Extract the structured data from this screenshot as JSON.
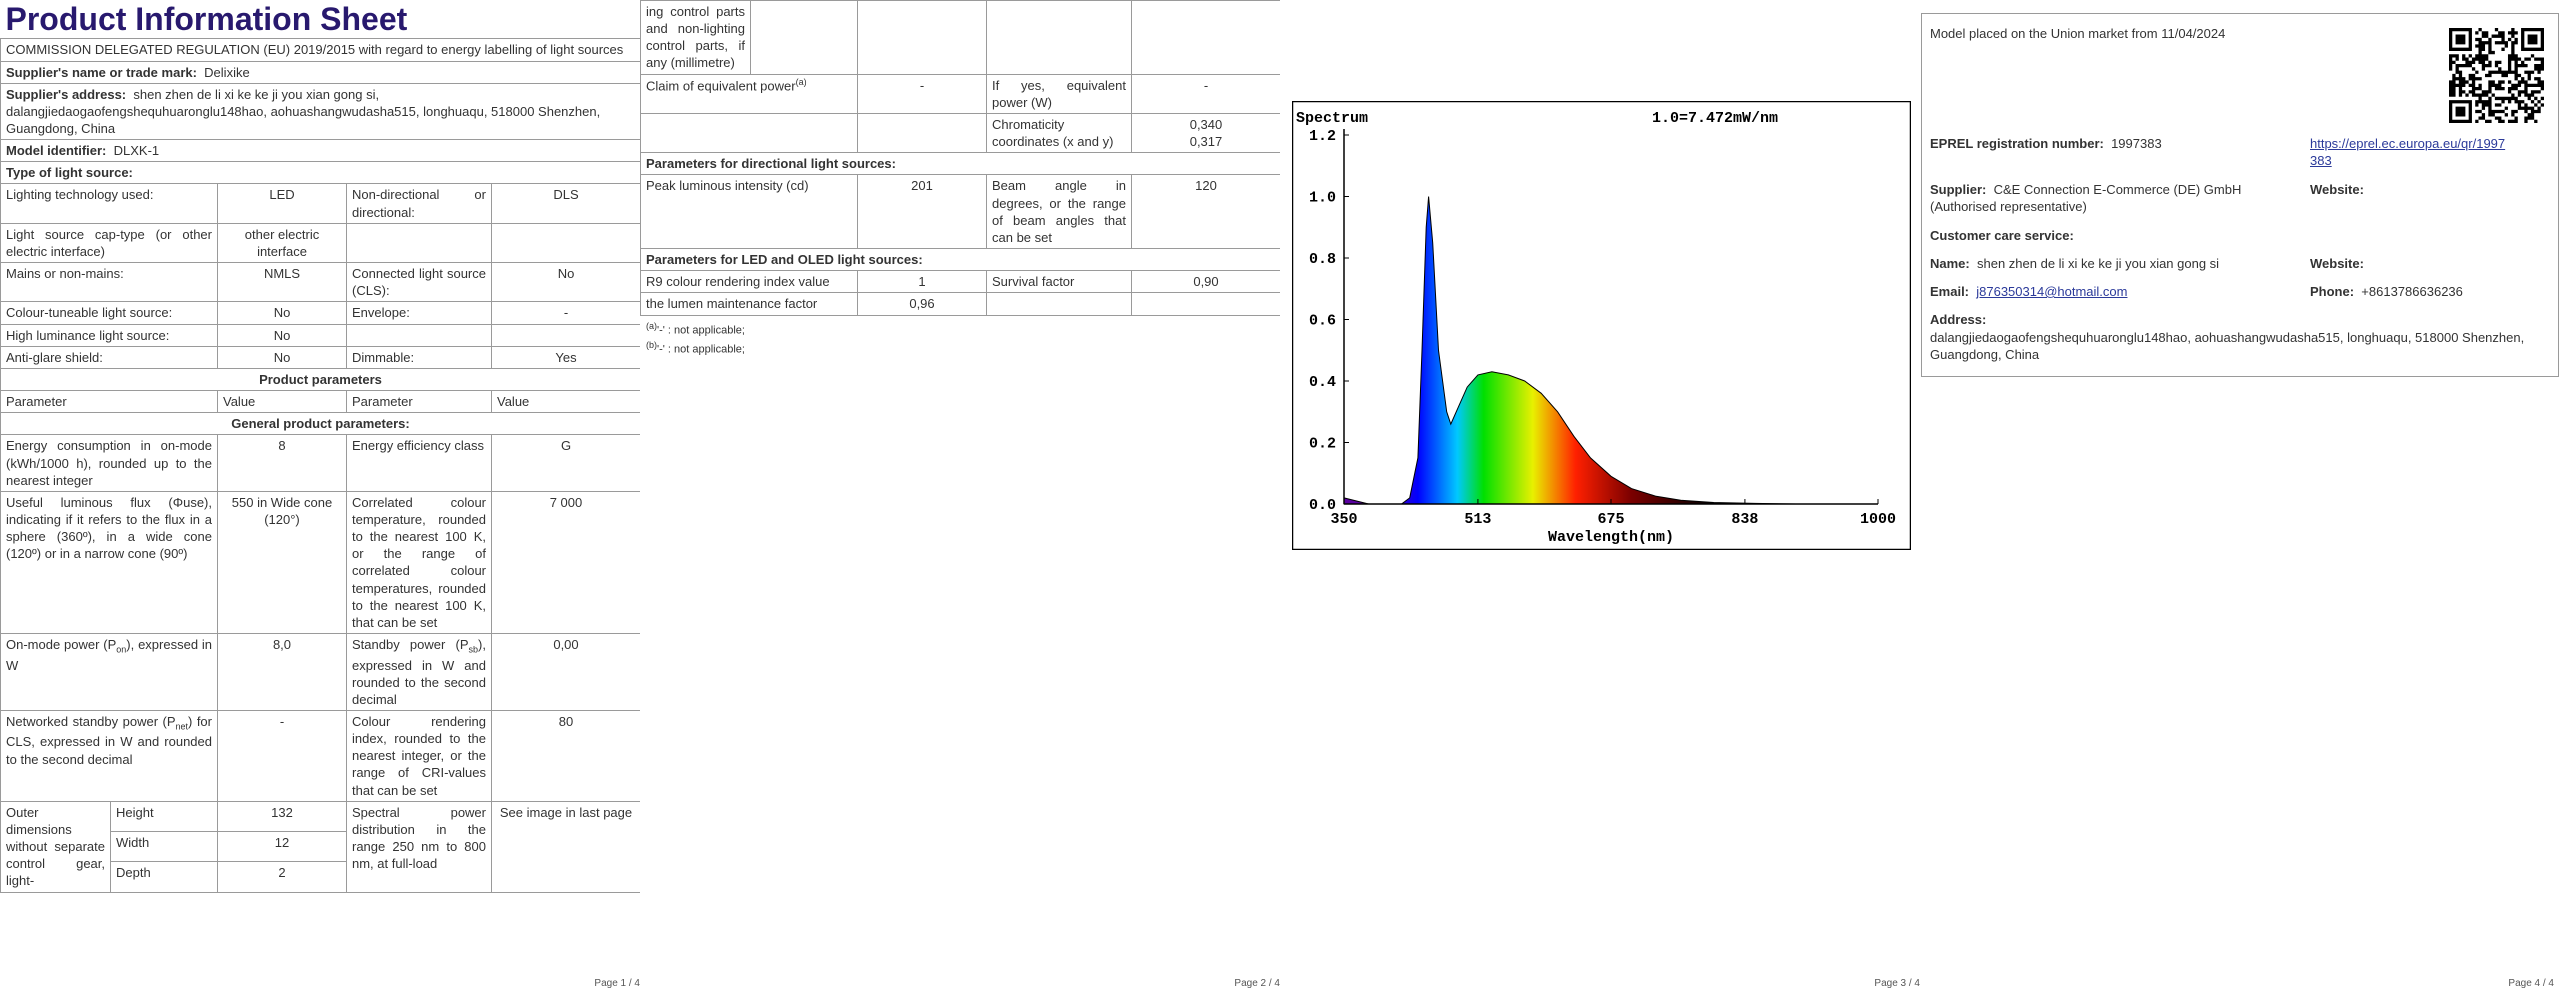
{
  "pages": [
    {
      "title": "Product Information Sheet",
      "subtitle": "COMMISSION DELEGATED REGULATION (EU) 2019/2015 with regard to energy labelling of light sources",
      "supplier": [
        "Supplier's name or trade mark:",
        "Delixike"
      ],
      "address": [
        "Supplier's address:",
        "shen zhen de li xi ke ke ji you xian gong si, dalangjiedaogaofengshequhuaronglu148hao, aohuashangwudasha515, longhuaqu, 518000 Shenzhen, Guangdong, China"
      ],
      "model": [
        "Model identifier:",
        "DLXK-1"
      ],
      "type_heading": "Type of light source:",
      "type_rows": [
        [
          "Lighting technology used:",
          "LED",
          "Non-directional or directional:",
          "DLS"
        ],
        [
          "Light source cap-type (or other electric interface)",
          "other electric interface"
        ],
        [
          "Mains or non-mains:",
          "NMLS",
          "Connected light source (CLS):",
          "No"
        ],
        [
          "Colour-tuneable light source:",
          "No",
          "Envelope:",
          "-"
        ],
        [
          "High luminance light source:",
          "No"
        ],
        [
          "Anti-glare shield:",
          "No",
          "Dimmable:",
          "Yes"
        ]
      ],
      "product_heading": "Product parameters",
      "header": [
        "Parameter",
        "Value",
        "Parameter",
        "Value"
      ],
      "general_heading": "General product parameters:",
      "general_rows": [
        [
          "Energy consumption in on-mode (kWh/1000 h), rounded up to the nearest integer",
          "8",
          "Energy efficiency class",
          "G"
        ],
        [
          "Useful luminous flux (Φuse), indicating if it refers to the flux in a sphere (360º), in a wide cone (120º) or in a narrow cone (90º)",
          "550 in Wide cone (120°)",
          "Correlated colour temperature, rounded to the nearest 100 K, or the range of correlated colour temperatures, rounded to the nearest 100 K, that can be set",
          "7 000"
        ],
        [
          {
            "pre": "On-mode power (P",
            "sub": "on",
            "post": "), expressed in W"
          },
          "8,0",
          {
            "pre": "Standby power (P",
            "sub": "sb",
            "post": "), expressed in W and rounded to the second decimal"
          },
          "0,00"
        ],
        [
          {
            "pre": "Networked standby power (P",
            "sub": "net",
            "post": ") for CLS, expressed in W and rounded to the second decimal"
          },
          "-",
          "Colour rendering index, rounded to the nearest integer, or the range of CRI-values that can be set",
          "80"
        ]
      ],
      "dimensions": {
        "label": "Outer dimensions without separate control gear, light-",
        "rows": [
          [
            "Height",
            "132"
          ],
          [
            "Width",
            "12"
          ],
          [
            "Depth",
            "2"
          ]
        ]
      },
      "spectral": [
        "Spectral power distribution in the range 250 nm to 800 nm, at full-load",
        "See image in last page"
      ],
      "footer": "Page 1 / 4"
    },
    {
      "continuation": "ing control parts and non-lighting control parts, if any (millimetre)",
      "claim": [
        {
          "text": "Claim of equivalent power",
          "sup": "(a)"
        },
        "-",
        "If yes, equivalent power (W)",
        "-"
      ],
      "chromaticity": [
        "Chromaticity coordinates (x and y)",
        "0,340",
        "0,317"
      ],
      "directional_heading": "Parameters for directional light sources:",
      "directional": [
        "Peak luminous intensity (cd)",
        "201",
        "Beam angle in degrees, or the range of beam angles that can be set",
        "120"
      ],
      "led_heading": "Parameters for LED and OLED light sources:",
      "led_rows": [
        [
          "R9 colour rendering index value",
          "1",
          "Survival factor",
          "0,90"
        ],
        [
          "the lumen maintenance factor",
          "0,96"
        ]
      ],
      "notes": [
        {
          "sup": "(a)",
          "text": "'-' : not applicable;"
        },
        {
          "sup": "(b)",
          "text": "'-' : not applicable;"
        }
      ],
      "footer": "Page 2 / 4"
    },
    {
      "footer": "Page 3 / 4"
    },
    {
      "placed": "Model placed on the Union market from 11/04/2024",
      "eprel": [
        "EPREL registration number:",
        "1997383"
      ],
      "link": "https://eprel.ec.europa.eu/qr/1997383",
      "supplier": [
        "Supplier:",
        "C&E Connection E-Commerce (DE) GmbH (Authorised representative)"
      ],
      "website": "Website:",
      "care": "Customer care service:",
      "name": [
        "Name:",
        "shen zhen de li xi ke ke ji you xian gong si"
      ],
      "website2": "Website:",
      "email": [
        "Email:",
        "j876350314@hotmail.com"
      ],
      "phone": [
        "Phone:",
        "+8613786636236"
      ],
      "address": [
        "Address:",
        "dalangjiedaogaofengshequhuaronglu148hao, aohuashangwudasha515, longhuaqu, 518000 Shenzhen, Guangdong, China"
      ],
      "footer": "Page 4 / 4"
    }
  ],
  "chart_data": {
    "type": "area",
    "title": "Spectrum",
    "annotation": "1.0=7.472mW/nm",
    "x_label": "Wavelength(nm)",
    "x": [
      350,
      380,
      420,
      430,
      440,
      445,
      450,
      453,
      458,
      465,
      475,
      480,
      490,
      500,
      513,
      530,
      550,
      570,
      590,
      610,
      630,
      650,
      675,
      700,
      730,
      760,
      800,
      850,
      900,
      1000
    ],
    "values": [
      0.02,
      0,
      0,
      0.02,
      0.15,
      0.5,
      0.9,
      1.0,
      0.85,
      0.5,
      0.3,
      0.26,
      0.32,
      0.38,
      0.42,
      0.43,
      0.42,
      0.4,
      0.36,
      0.3,
      0.22,
      0.15,
      0.09,
      0.05,
      0.025,
      0.012,
      0.005,
      0.002,
      0,
      0
    ],
    "xlim": [
      350,
      1000
    ],
    "ylim": [
      0,
      1.2
    ],
    "xticks": [
      350,
      513,
      675,
      838,
      1000
    ],
    "yticks": [
      {
        "value": 0,
        "label": "0.0"
      },
      0.2,
      0.4,
      0.6,
      0.8,
      {
        "value": 1,
        "label": "1.0"
      },
      1.2
    ]
  }
}
